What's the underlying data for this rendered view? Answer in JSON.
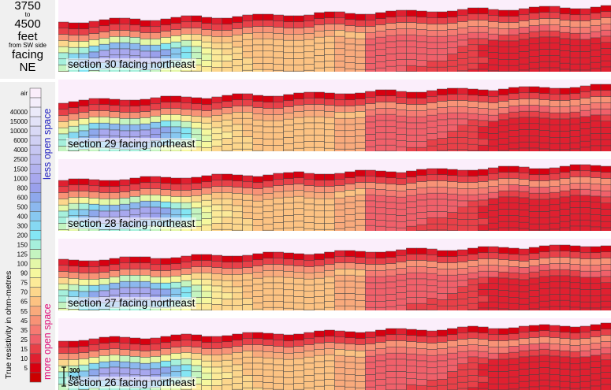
{
  "header": {
    "range_start": "3750",
    "range_to": "to",
    "range_end": "4500",
    "unit": "feet",
    "origin": "from SW side",
    "facing_word": "facing",
    "direction": "NE"
  },
  "legend": {
    "axis_title": "True resistivity in ohm-metres",
    "less_label": "less open space",
    "more_label": "more open space",
    "less_color": "#2020c0",
    "more_color": "#e0107a",
    "bins": [
      {
        "label": "air",
        "color": "#fbeefb"
      },
      {
        "label": "",
        "color": "#f4eefb"
      },
      {
        "label": "40000",
        "color": "#ebeaf9"
      },
      {
        "label": "15000",
        "color": "#e2e2f7"
      },
      {
        "label": "10000",
        "color": "#d9d9f5"
      },
      {
        "label": "6000",
        "color": "#d0d0f3"
      },
      {
        "label": "4000",
        "color": "#c6c6f2"
      },
      {
        "label": "2500",
        "color": "#bcbcf0"
      },
      {
        "label": "1500",
        "color": "#b2b2ef"
      },
      {
        "label": "1000",
        "color": "#a8a8ee"
      },
      {
        "label": "800",
        "color": "#9aa0ec"
      },
      {
        "label": "600",
        "color": "#8ea8ec"
      },
      {
        "label": "500",
        "color": "#8cb8ee"
      },
      {
        "label": "400",
        "color": "#88c8f0"
      },
      {
        "label": "300",
        "color": "#86d8f2"
      },
      {
        "label": "200",
        "color": "#84e6f4"
      },
      {
        "label": "150",
        "color": "#a6f0dc"
      },
      {
        "label": "125",
        "color": "#c4f4c0"
      },
      {
        "label": "100",
        "color": "#e4f8a8"
      },
      {
        "label": "90",
        "color": "#f6f89e"
      },
      {
        "label": "75",
        "color": "#fcea98"
      },
      {
        "label": "70",
        "color": "#fcd68c"
      },
      {
        "label": "65",
        "color": "#fcc282"
      },
      {
        "label": "55",
        "color": "#f9aa7c"
      },
      {
        "label": "45",
        "color": "#f89276"
      },
      {
        "label": "35",
        "color": "#f67a72"
      },
      {
        "label": "25",
        "color": "#f0606a"
      },
      {
        "label": "15",
        "color": "#e84048"
      },
      {
        "label": "10",
        "color": "#e02030"
      },
      {
        "label": "5",
        "color": "#d80010"
      },
      {
        "label": "",
        "color": "#cc0000"
      }
    ]
  },
  "scale_bar": {
    "label_line1": "300",
    "label_line2": "feet"
  },
  "chart_data": {
    "type": "heatmap",
    "sections": [
      {
        "label": "section 30 facing northeast"
      },
      {
        "label": "section 29 facing northeast"
      },
      {
        "label": "section 28 facing northeast"
      },
      {
        "label": "section 27 facing northeast"
      },
      {
        "label": "section 26 facing northeast"
      }
    ]
  }
}
